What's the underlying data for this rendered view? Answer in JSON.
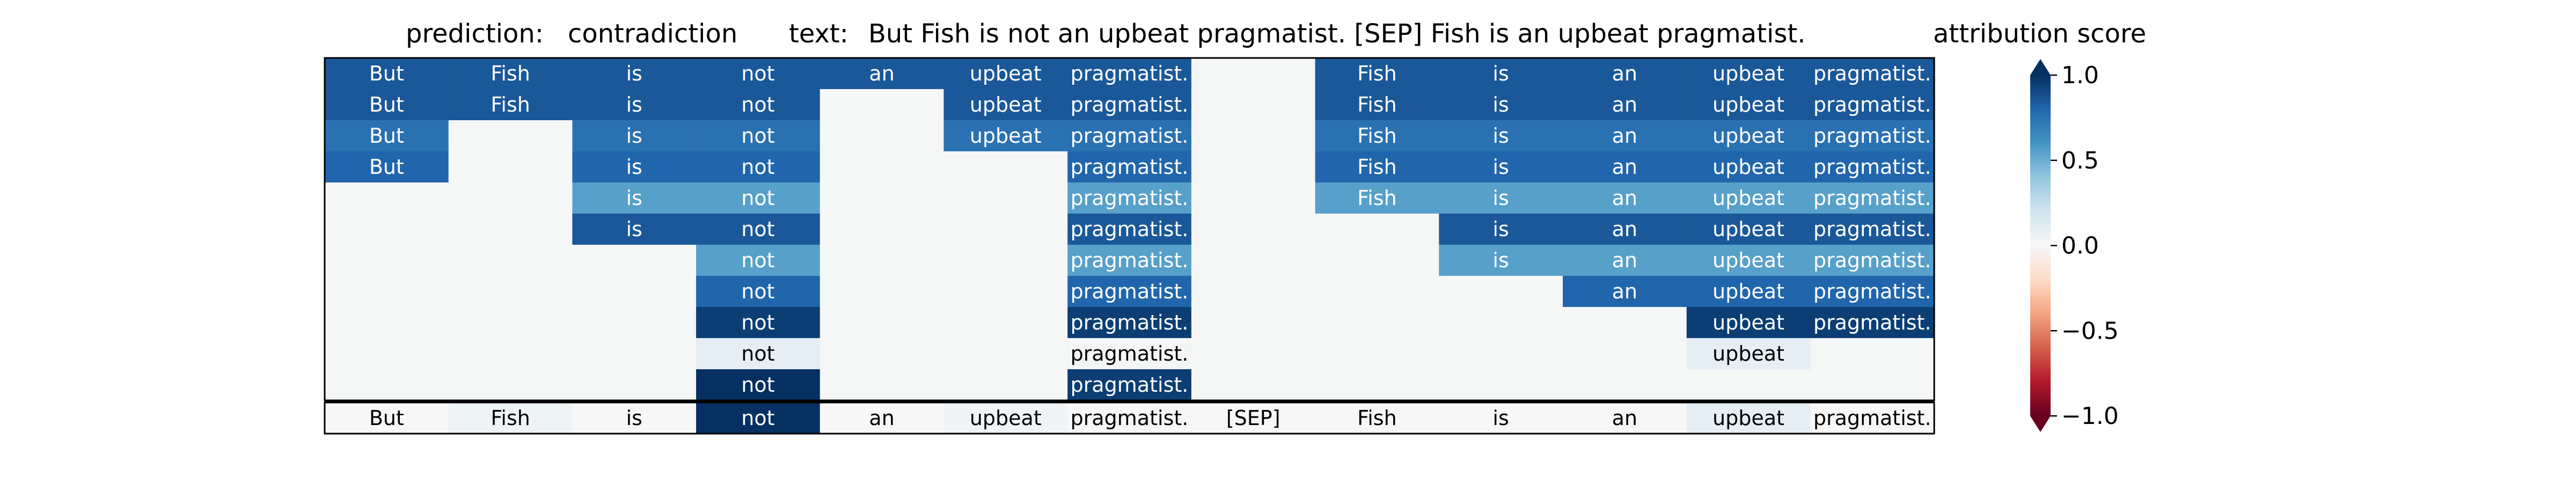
{
  "chart_data": {
    "type": "heatmap",
    "title": {
      "prediction_label": "prediction:",
      "prediction_value": "contradiction",
      "text_label": "text:",
      "text_value": "But Fish is not an upbeat pragmatist. [SEP] Fish is an upbeat pragmatist."
    },
    "colorbar": {
      "label": "attribution score",
      "ticks": [
        "1.0",
        "0.5",
        "0.0",
        "−0.5",
        "−1.0"
      ],
      "tick_values": [
        1.0,
        0.5,
        0.0,
        -0.5,
        -1.0
      ],
      "range": [
        -1.0,
        1.0
      ],
      "colormap": "RdBu",
      "extend": "both"
    },
    "colors": {
      "background_cell": "#f5f6f6",
      "dark_text": "#000000",
      "light_text": "#ffffff",
      "separator": "#000000"
    },
    "columns": [
      "But",
      "Fish",
      "is",
      "not",
      "an",
      "upbeat",
      "pragmatist.",
      "[SEP]",
      "Fish",
      "is",
      "an",
      "upbeat",
      "pragmatist."
    ],
    "rows": [
      {
        "cells": [
          {
            "t": "But",
            "v": 0.85
          },
          {
            "t": "Fish",
            "v": 0.85
          },
          {
            "t": "is",
            "v": 0.85
          },
          {
            "t": "not",
            "v": 0.85
          },
          {
            "t": "an",
            "v": 0.85
          },
          {
            "t": "upbeat",
            "v": 0.85
          },
          {
            "t": "pragmatist.",
            "v": 0.85
          },
          {
            "t": "",
            "v": 0
          },
          {
            "t": "Fish",
            "v": 0.85
          },
          {
            "t": "is",
            "v": 0.85
          },
          {
            "t": "an",
            "v": 0.85
          },
          {
            "t": "upbeat",
            "v": 0.85
          },
          {
            "t": "pragmatist.",
            "v": 0.85
          }
        ]
      },
      {
        "cells": [
          {
            "t": "But",
            "v": 0.85
          },
          {
            "t": "Fish",
            "v": 0.85
          },
          {
            "t": "is",
            "v": 0.85
          },
          {
            "t": "not",
            "v": 0.85
          },
          {
            "t": "",
            "v": 0
          },
          {
            "t": "upbeat",
            "v": 0.85
          },
          {
            "t": "pragmatist.",
            "v": 0.85
          },
          {
            "t": "",
            "v": 0
          },
          {
            "t": "Fish",
            "v": 0.85
          },
          {
            "t": "is",
            "v": 0.85
          },
          {
            "t": "an",
            "v": 0.85
          },
          {
            "t": "upbeat",
            "v": 0.85
          },
          {
            "t": "pragmatist.",
            "v": 0.85
          }
        ]
      },
      {
        "cells": [
          {
            "t": "But",
            "v": 0.75
          },
          {
            "t": "",
            "v": 0
          },
          {
            "t": "is",
            "v": 0.75
          },
          {
            "t": "not",
            "v": 0.75
          },
          {
            "t": "",
            "v": 0
          },
          {
            "t": "upbeat",
            "v": 0.75
          },
          {
            "t": "pragmatist.",
            "v": 0.75
          },
          {
            "t": "",
            "v": 0
          },
          {
            "t": "Fish",
            "v": 0.75
          },
          {
            "t": "is",
            "v": 0.75
          },
          {
            "t": "an",
            "v": 0.75
          },
          {
            "t": "upbeat",
            "v": 0.75
          },
          {
            "t": "pragmatist.",
            "v": 0.75
          }
        ]
      },
      {
        "cells": [
          {
            "t": "But",
            "v": 0.8
          },
          {
            "t": "",
            "v": 0
          },
          {
            "t": "is",
            "v": 0.8
          },
          {
            "t": "not",
            "v": 0.8
          },
          {
            "t": "",
            "v": 0
          },
          {
            "t": "",
            "v": 0
          },
          {
            "t": "pragmatist.",
            "v": 0.8
          },
          {
            "t": "",
            "v": 0
          },
          {
            "t": "Fish",
            "v": 0.8
          },
          {
            "t": "is",
            "v": 0.8
          },
          {
            "t": "an",
            "v": 0.8
          },
          {
            "t": "upbeat",
            "v": 0.8
          },
          {
            "t": "pragmatist.",
            "v": 0.8
          }
        ]
      },
      {
        "cells": [
          {
            "t": "",
            "v": 0
          },
          {
            "t": "",
            "v": 0
          },
          {
            "t": "is",
            "v": 0.55
          },
          {
            "t": "not",
            "v": 0.55
          },
          {
            "t": "",
            "v": 0
          },
          {
            "t": "",
            "v": 0
          },
          {
            "t": "pragmatist.",
            "v": 0.55
          },
          {
            "t": "",
            "v": 0
          },
          {
            "t": "Fish",
            "v": 0.55
          },
          {
            "t": "is",
            "v": 0.55
          },
          {
            "t": "an",
            "v": 0.55
          },
          {
            "t": "upbeat",
            "v": 0.55
          },
          {
            "t": "pragmatist.",
            "v": 0.55
          }
        ]
      },
      {
        "cells": [
          {
            "t": "",
            "v": 0
          },
          {
            "t": "",
            "v": 0
          },
          {
            "t": "is",
            "v": 0.85
          },
          {
            "t": "not",
            "v": 0.85
          },
          {
            "t": "",
            "v": 0
          },
          {
            "t": "",
            "v": 0
          },
          {
            "t": "pragmatist.",
            "v": 0.85
          },
          {
            "t": "",
            "v": 0
          },
          {
            "t": "",
            "v": 0
          },
          {
            "t": "is",
            "v": 0.85
          },
          {
            "t": "an",
            "v": 0.85
          },
          {
            "t": "upbeat",
            "v": 0.85
          },
          {
            "t": "pragmatist.",
            "v": 0.85
          }
        ]
      },
      {
        "cells": [
          {
            "t": "",
            "v": 0
          },
          {
            "t": "",
            "v": 0
          },
          {
            "t": "",
            "v": 0
          },
          {
            "t": "not",
            "v": 0.55
          },
          {
            "t": "",
            "v": 0
          },
          {
            "t": "",
            "v": 0
          },
          {
            "t": "pragmatist.",
            "v": 0.55
          },
          {
            "t": "",
            "v": 0
          },
          {
            "t": "",
            "v": 0
          },
          {
            "t": "is",
            "v": 0.55
          },
          {
            "t": "an",
            "v": 0.55
          },
          {
            "t": "upbeat",
            "v": 0.55
          },
          {
            "t": "pragmatist.",
            "v": 0.55
          }
        ]
      },
      {
        "cells": [
          {
            "t": "",
            "v": 0
          },
          {
            "t": "",
            "v": 0
          },
          {
            "t": "",
            "v": 0
          },
          {
            "t": "not",
            "v": 0.8
          },
          {
            "t": "",
            "v": 0
          },
          {
            "t": "",
            "v": 0
          },
          {
            "t": "pragmatist.",
            "v": 0.8
          },
          {
            "t": "",
            "v": 0
          },
          {
            "t": "",
            "v": 0
          },
          {
            "t": "",
            "v": 0
          },
          {
            "t": "an",
            "v": 0.8
          },
          {
            "t": "upbeat",
            "v": 0.8
          },
          {
            "t": "pragmatist.",
            "v": 0.8
          }
        ]
      },
      {
        "cells": [
          {
            "t": "",
            "v": 0
          },
          {
            "t": "",
            "v": 0
          },
          {
            "t": "",
            "v": 0
          },
          {
            "t": "not",
            "v": 0.95
          },
          {
            "t": "",
            "v": 0
          },
          {
            "t": "",
            "v": 0
          },
          {
            "t": "pragmatist.",
            "v": 0.95
          },
          {
            "t": "",
            "v": 0
          },
          {
            "t": "",
            "v": 0
          },
          {
            "t": "",
            "v": 0
          },
          {
            "t": "",
            "v": 0
          },
          {
            "t": "upbeat",
            "v": 0.95
          },
          {
            "t": "pragmatist.",
            "v": 0.95
          }
        ]
      },
      {
        "cells": [
          {
            "t": "",
            "v": 0
          },
          {
            "t": "",
            "v": 0
          },
          {
            "t": "",
            "v": 0
          },
          {
            "t": "not",
            "v": 0.1
          },
          {
            "t": "",
            "v": 0
          },
          {
            "t": "",
            "v": 0
          },
          {
            "t": "pragmatist.",
            "v": 0.02
          },
          {
            "t": "",
            "v": 0
          },
          {
            "t": "",
            "v": 0
          },
          {
            "t": "",
            "v": 0
          },
          {
            "t": "",
            "v": 0
          },
          {
            "t": "upbeat",
            "v": 0.1
          },
          {
            "t": "",
            "v": 0
          }
        ]
      },
      {
        "cells": [
          {
            "t": "",
            "v": 0
          },
          {
            "t": "",
            "v": 0
          },
          {
            "t": "",
            "v": 0
          },
          {
            "t": "not",
            "v": 1.0
          },
          {
            "t": "",
            "v": 0
          },
          {
            "t": "",
            "v": 0
          },
          {
            "t": "pragmatist.",
            "v": 0.95
          },
          {
            "t": "",
            "v": 0
          },
          {
            "t": "",
            "v": 0
          },
          {
            "t": "",
            "v": 0
          },
          {
            "t": "",
            "v": 0
          },
          {
            "t": "",
            "v": 0
          },
          {
            "t": "",
            "v": 0
          }
        ]
      }
    ],
    "summary_row": {
      "cells": [
        {
          "t": "But",
          "v": 0.0
        },
        {
          "t": "Fish",
          "v": 0.05
        },
        {
          "t": "is",
          "v": 0.0
        },
        {
          "t": "not",
          "v": 1.0
        },
        {
          "t": "an",
          "v": 0.0
        },
        {
          "t": "upbeat",
          "v": 0.03
        },
        {
          "t": "pragmatist.",
          "v": 0.0
        },
        {
          "t": "[SEP]",
          "v": 0.0
        },
        {
          "t": "Fish",
          "v": 0.0
        },
        {
          "t": "is",
          "v": 0.0
        },
        {
          "t": "an",
          "v": 0.0
        },
        {
          "t": "upbeat",
          "v": 0.1
        },
        {
          "t": "pragmatist.",
          "v": 0.0
        }
      ]
    }
  }
}
